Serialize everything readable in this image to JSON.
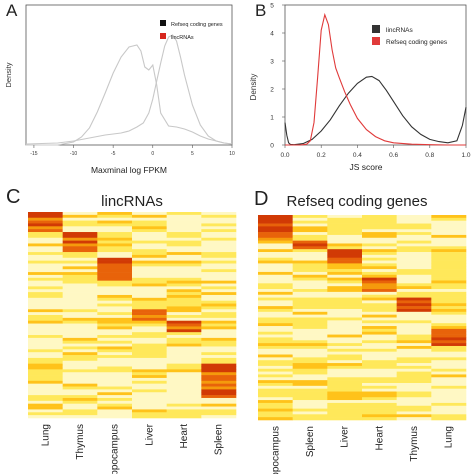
{
  "chart_data": [
    {
      "panel_label": "A",
      "type": "line",
      "xlabel": "Maxminal log FPKM",
      "ylabel": "Density",
      "xlim": [
        -16,
        10
      ],
      "ylim": [
        0,
        0.14
      ],
      "x_ticks": [
        "-15",
        "-10",
        "-5",
        "0",
        "5",
        "10"
      ],
      "x_tick_values": [
        -15,
        -10,
        -5,
        0,
        5,
        10
      ],
      "legend_position": "top-right",
      "series": [
        {
          "name": "Refseq coding genes",
          "legend_color": "#111111",
          "line_color": "#c8c8c8",
          "x": [
            -16,
            -12,
            -10,
            -8,
            -6,
            -5,
            -4,
            -3,
            -2,
            -1.2,
            -0.5,
            0,
            0.5,
            1,
            1.5,
            2,
            2.5,
            3,
            3.5,
            4,
            5,
            6,
            7,
            8,
            9,
            10
          ],
          "y": [
            0.001,
            0.002,
            0.004,
            0.007,
            0.01,
            0.011,
            0.012,
            0.014,
            0.018,
            0.022,
            0.032,
            0.046,
            0.064,
            0.082,
            0.099,
            0.108,
            0.11,
            0.104,
            0.088,
            0.07,
            0.04,
            0.02,
            0.009,
            0.004,
            0.002,
            0.001
          ]
        },
        {
          "name": "lincRNAs",
          "legend_color": "#d7261e",
          "line_color": "#c8c8c8",
          "x": [
            -16,
            -14,
            -12,
            -10,
            -9,
            -8,
            -7,
            -6,
            -5,
            -4,
            -3,
            -2,
            -1.5,
            -1,
            -0.5,
            0,
            0.5,
            1,
            2,
            3,
            4,
            5,
            6,
            7,
            8,
            9,
            10
          ],
          "y": [
            0.0,
            0.0,
            0.0,
            0.003,
            0.008,
            0.017,
            0.033,
            0.052,
            0.072,
            0.088,
            0.098,
            0.1,
            0.094,
            0.078,
            0.075,
            0.08,
            0.06,
            0.032,
            0.019,
            0.018,
            0.016,
            0.013,
            0.009,
            0.006,
            0.004,
            0.002,
            0.001
          ]
        }
      ]
    },
    {
      "panel_label": "B",
      "type": "line",
      "xlabel": "JS score",
      "ylabel": "Density",
      "xlim": [
        0,
        1
      ],
      "ylim": [
        0,
        5
      ],
      "x_ticks": [
        "0.0",
        "0.2",
        "0.4",
        "0.6",
        "0.8",
        "1.0"
      ],
      "x_tick_values": [
        0,
        0.2,
        0.4,
        0.6,
        0.8,
        1.0
      ],
      "y_ticks": [
        "0",
        "1",
        "2",
        "3",
        "4",
        "5"
      ],
      "y_tick_values": [
        0,
        1,
        2,
        3,
        4,
        5
      ],
      "legend_position": "top-right",
      "series": [
        {
          "name": "lincRNAs",
          "color": "#333333",
          "x": [
            0,
            0.01,
            0.02,
            0.03,
            0.05,
            0.1,
            0.15,
            0.2,
            0.25,
            0.3,
            0.35,
            0.4,
            0.45,
            0.48,
            0.52,
            0.56,
            0.6,
            0.65,
            0.7,
            0.75,
            0.8,
            0.85,
            0.9,
            0.95,
            0.98,
            1.0
          ],
          "y": [
            0.8,
            0.35,
            0.08,
            0.02,
            0.01,
            0.05,
            0.2,
            0.5,
            0.9,
            1.4,
            1.85,
            2.2,
            2.42,
            2.45,
            2.3,
            1.95,
            1.55,
            1.05,
            0.65,
            0.38,
            0.2,
            0.12,
            0.08,
            0.15,
            0.7,
            1.35
          ]
        },
        {
          "name": "Refseq coding genes",
          "color": "#e03a3a",
          "x": [
            0,
            0.03,
            0.05,
            0.08,
            0.1,
            0.12,
            0.14,
            0.16,
            0.18,
            0.2,
            0.22,
            0.24,
            0.26,
            0.28,
            0.3,
            0.33,
            0.36,
            0.4,
            0.45,
            0.5,
            0.55,
            0.6,
            0.7,
            0.8,
            0.9,
            1.0
          ],
          "y": [
            0.0,
            0.0,
            0.0,
            0.0,
            0.01,
            0.03,
            0.15,
            0.8,
            2.4,
            4.1,
            4.65,
            4.3,
            3.4,
            2.75,
            2.4,
            1.9,
            1.45,
            0.95,
            0.55,
            0.3,
            0.15,
            0.08,
            0.03,
            0.01,
            0.0,
            0.0
          ]
        }
      ]
    },
    {
      "panel_label": "C",
      "type": "heatmap",
      "title": "lincRNAs",
      "columns": [
        "Lung",
        "Thymus",
        "Hippocampus",
        "Liver",
        "Heart",
        "Spleen"
      ],
      "row_count": 72,
      "blocks": [
        {
          "column": "Lung",
          "start_fraction": 0.0,
          "end_fraction": 0.1
        },
        {
          "column": "Thymus",
          "start_fraction": 0.1,
          "end_fraction": 0.2
        },
        {
          "column": "Hippocampus",
          "start_fraction": 0.22,
          "end_fraction": 0.33
        },
        {
          "column": "Liver",
          "start_fraction": 0.47,
          "end_fraction": 0.53
        },
        {
          "column": "Heart",
          "start_fraction": 0.53,
          "end_fraction": 0.59
        },
        {
          "column": "Spleen",
          "start_fraction": 0.73,
          "end_fraction": 0.9
        }
      ],
      "color_scale": [
        "#fff8c4",
        "#ffe85a",
        "#ffc21a",
        "#f59a0c",
        "#e8630a",
        "#d13a05"
      ]
    },
    {
      "panel_label": "D",
      "type": "heatmap",
      "title": "Refseq coding genes",
      "columns": [
        "Hippocampus",
        "Spleen",
        "Liver",
        "Heart",
        "Thymus",
        "Lung"
      ],
      "row_count": 72,
      "blocks": [
        {
          "column": "Hippocampus",
          "start_fraction": 0.0,
          "end_fraction": 0.12
        },
        {
          "column": "Spleen",
          "start_fraction": 0.12,
          "end_fraction": 0.16
        },
        {
          "column": "Liver",
          "start_fraction": 0.17,
          "end_fraction": 0.24
        },
        {
          "column": "Heart",
          "start_fraction": 0.31,
          "end_fraction": 0.37
        },
        {
          "column": "Thymus",
          "start_fraction": 0.4,
          "end_fraction": 0.47
        },
        {
          "column": "Lung",
          "start_fraction": 0.55,
          "end_fraction": 0.64
        }
      ],
      "color_scale": [
        "#fff8c4",
        "#ffe85a",
        "#ffc21a",
        "#f59a0c",
        "#e8630a",
        "#d13a05"
      ]
    }
  ]
}
